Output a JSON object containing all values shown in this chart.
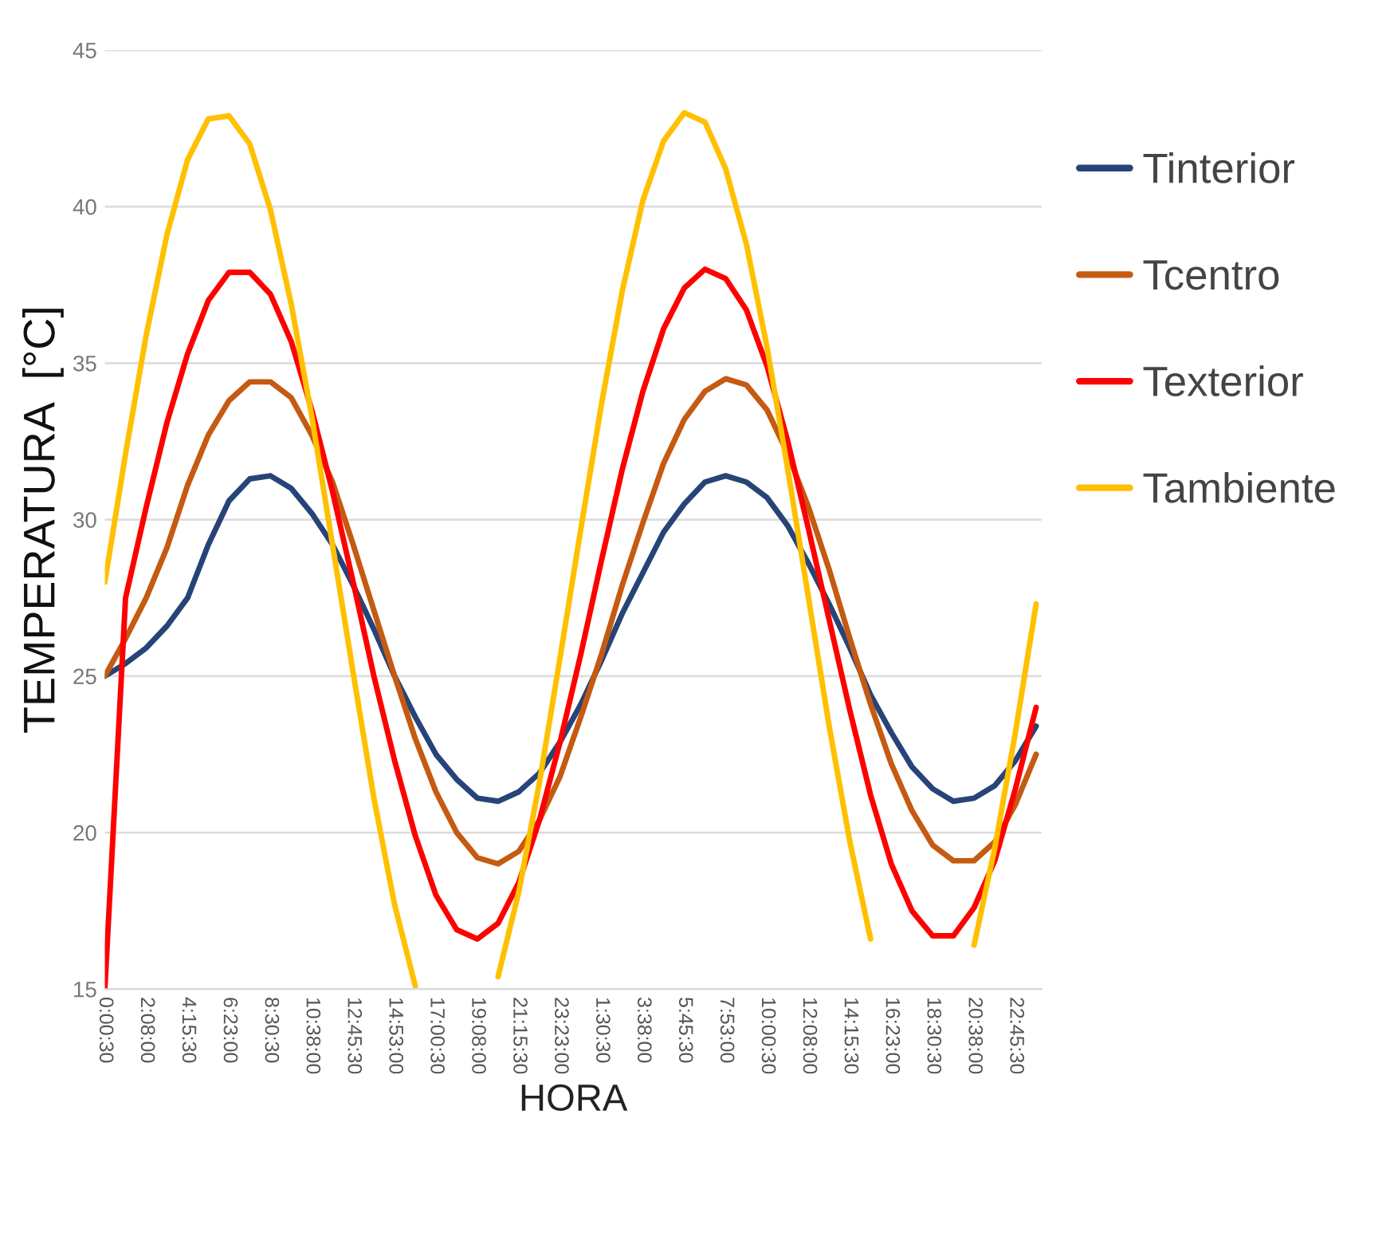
{
  "chart_data": {
    "type": "line",
    "xlabel": "HORA",
    "ylabel": "TEMPERATURA  [°C]",
    "categories": [
      "0:00:30",
      null,
      "2:08:00",
      null,
      "4:15:30",
      null,
      "6:23:00",
      null,
      "8:30:30",
      null,
      "10:38:00",
      null,
      "12:45:30",
      null,
      "14:53:00",
      null,
      "17:00:30",
      null,
      "19:08:00",
      null,
      "21:15:30",
      null,
      "23:23:00",
      null,
      "1:30:30",
      null,
      "3:38:00",
      null,
      "5:45:30",
      null,
      "7:53:00",
      null,
      "10:00:30",
      null,
      "12:08:00",
      null,
      "14:15:30",
      null,
      "16:23:00",
      null,
      "18:30:30",
      null,
      "20:38:00",
      null,
      "22:45:30",
      null
    ],
    "series": [
      {
        "name": "Tinterior",
        "color": "#264478",
        "values": [
          25.0,
          25.4,
          25.9,
          26.6,
          27.5,
          29.2,
          30.6,
          31.3,
          31.4,
          31.0,
          30.2,
          29.2,
          27.9,
          26.5,
          25.0,
          23.7,
          22.5,
          21.7,
          21.1,
          21.0,
          21.3,
          21.9,
          22.9,
          24.1,
          25.5,
          27.0,
          28.3,
          29.6,
          30.5,
          31.2,
          31.4,
          31.2,
          30.7,
          29.8,
          28.6,
          27.3,
          25.9,
          24.4,
          23.2,
          22.1,
          21.4,
          21.0,
          21.1,
          21.5,
          22.3,
          23.4
        ]
      },
      {
        "name": "Tcentro",
        "color": "#c55a11",
        "values": [
          25.0,
          26.2,
          27.5,
          29.1,
          31.1,
          32.7,
          33.8,
          34.4,
          34.4,
          33.9,
          32.7,
          31.2,
          29.2,
          27.1,
          25.0,
          23.0,
          21.3,
          20.0,
          19.2,
          19.0,
          19.4,
          20.4,
          21.8,
          23.7,
          25.7,
          27.9,
          29.9,
          31.8,
          33.2,
          34.1,
          34.5,
          34.3,
          33.5,
          32.1,
          30.4,
          28.4,
          26.2,
          24.1,
          22.2,
          20.7,
          19.6,
          19.1,
          19.1,
          19.7,
          20.9,
          22.5
        ]
      },
      {
        "name": "Texterior",
        "color": "#ff0000",
        "values": [
          15,
          27.5,
          30.4,
          33.1,
          35.3,
          37.0,
          37.9,
          37.9,
          37.2,
          35.7,
          33.5,
          30.9,
          28.0,
          25.0,
          22.3,
          19.9,
          18.0,
          16.9,
          16.6,
          17.1,
          18.4,
          20.4,
          22.9,
          25.7,
          28.7,
          31.6,
          34.1,
          36.1,
          37.4,
          38.0,
          37.7,
          36.7,
          34.9,
          32.5,
          29.7,
          26.8,
          23.9,
          21.2,
          19.0,
          17.5,
          16.7,
          16.7,
          17.6,
          19.1,
          21.4,
          24.0
        ]
      },
      {
        "name": "Tambiente",
        "color": "#ffc000",
        "values": [
          28,
          32.1,
          35.9,
          39.1,
          41.5,
          42.8,
          42.9,
          42.0,
          39.9,
          36.9,
          33.3,
          29.2,
          25.1,
          21.1,
          17.7,
          15.1,
          null,
          null,
          null,
          15.4,
          18.1,
          21.6,
          25.6,
          29.7,
          33.7,
          37.3,
          40.2,
          42.1,
          43.0,
          42.7,
          41.2,
          38.8,
          35.5,
          31.6,
          27.5,
          23.4,
          19.7,
          16.6,
          null,
          null,
          null,
          null,
          16.4,
          19.5,
          23.2,
          27.3
        ]
      }
    ],
    "ylim": [
      15,
      45
    ],
    "yticks": [
      15,
      20,
      25,
      30,
      35,
      40,
      45
    ],
    "grid": "y",
    "legend": "right",
    "marker": "none",
    "line_style": "solid"
  }
}
